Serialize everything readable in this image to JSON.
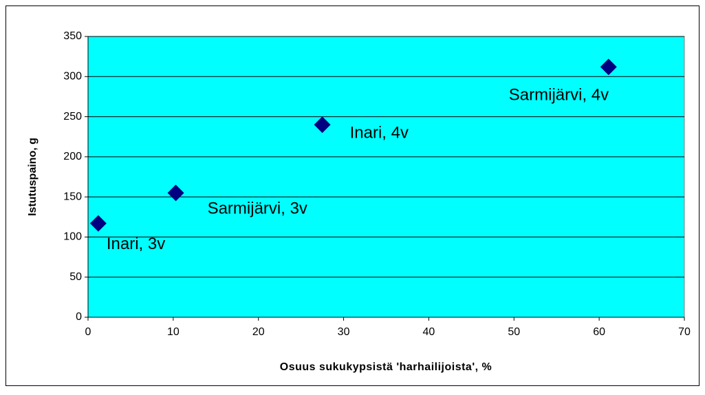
{
  "chart_data": {
    "type": "scatter",
    "x_label": "Osuus sukukypsistä 'harhailijoista', %",
    "y_label": "Istutuspaino, g",
    "series": [
      {
        "color": "#000080",
        "x": [
          1.2,
          10.3,
          27.5,
          61.1
        ],
        "values": [
          117,
          155,
          240,
          312
        ]
      }
    ],
    "point_labels": [
      "Inari, 3v",
      "Sarmijärvi, 3v",
      "Inari, 4v",
      "Sarmijärvi, 4v"
    ],
    "xlim": [
      0,
      70
    ],
    "xticks": [
      0,
      10,
      20,
      30,
      40,
      50,
      60,
      70
    ],
    "ylim": [
      0,
      350
    ],
    "yticks": [
      0,
      50,
      100,
      150,
      200,
      250,
      300,
      350
    ],
    "grid": true,
    "plot_color": "#00FFFF"
  }
}
